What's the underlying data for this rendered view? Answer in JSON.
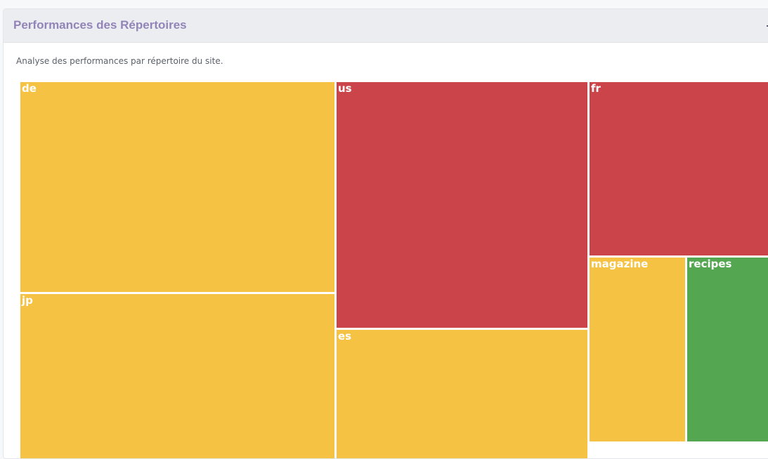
{
  "panel": {
    "title": "Performances des Répertoires",
    "description": "Analyse des performances par répertoire du site."
  },
  "colors": {
    "warning": "#f5c243",
    "danger": "#cb4449",
    "success": "#55a651"
  },
  "treemap": {
    "tiles": [
      {
        "name": "de",
        "status": "warning"
      },
      {
        "name": "jp",
        "status": "warning"
      },
      {
        "name": "us",
        "status": "danger"
      },
      {
        "name": "es",
        "status": "warning"
      },
      {
        "name": "fr",
        "status": "danger"
      },
      {
        "name": "magazine",
        "status": "warning"
      },
      {
        "name": "recipes",
        "status": "success"
      }
    ]
  }
}
